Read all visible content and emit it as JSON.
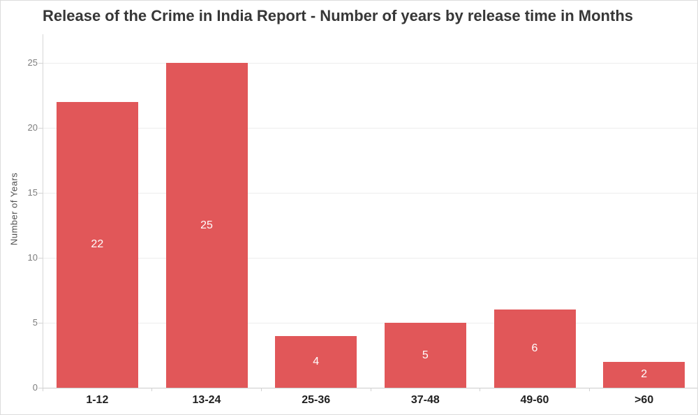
{
  "title": "Release of the Crime in India Report - Number of years by release time in Months",
  "chart_data": {
    "type": "bar",
    "title": "Release of the Crime in India Report - Number of years by release time in Months",
    "categories": [
      "1-12",
      "13-24",
      "25-36",
      "37-48",
      "49-60",
      ">60"
    ],
    "values": [
      22,
      25,
      4,
      5,
      6,
      2
    ],
    "bar_labels": [
      "22",
      "25",
      "4",
      "5",
      "6",
      "2"
    ],
    "xlabel": "",
    "ylabel": "Number of Years",
    "ylim": [
      0,
      25
    ],
    "yticks": [
      0,
      5,
      10,
      15,
      20,
      25
    ],
    "grid": true,
    "legend": false,
    "bar_color": "#e15759",
    "bar_label_color": "#ffffff",
    "title_color": "#373737",
    "axis_label_color": "#7d7d7d",
    "x_label_color": "#1f1f1f"
  }
}
